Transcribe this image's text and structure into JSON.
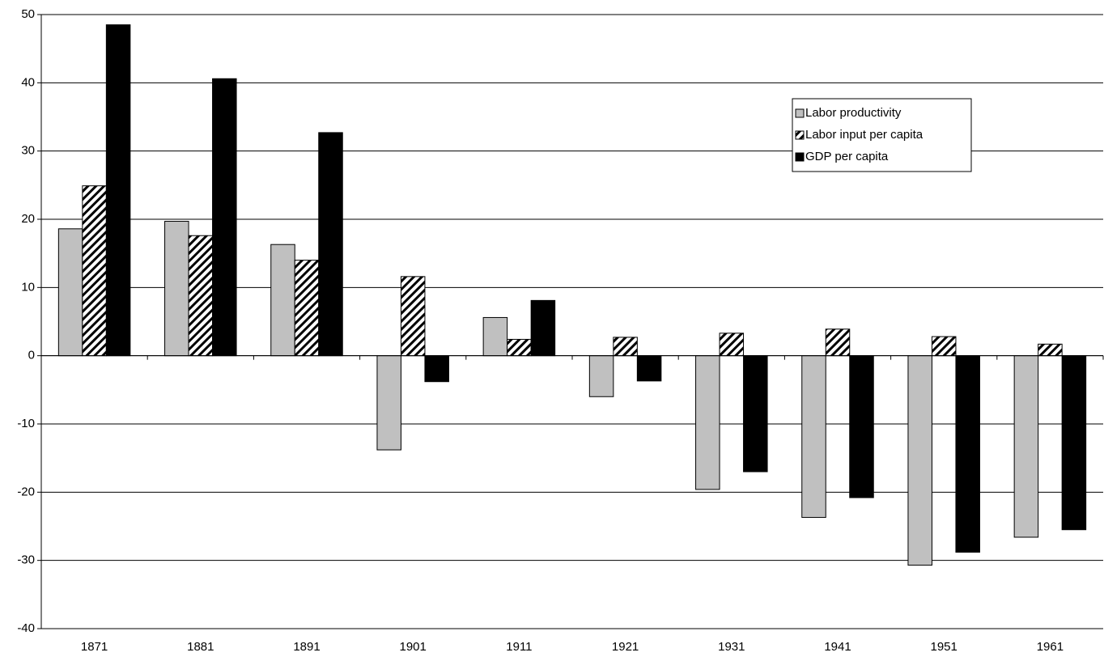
{
  "chart_data": {
    "type": "bar",
    "categories": [
      "1871",
      "1881",
      "1891",
      "1901",
      "1911",
      "1921",
      "1931",
      "1941",
      "1951",
      "1961"
    ],
    "series": [
      {
        "name": "Labor productivity",
        "color": "#c0c0c0",
        "values": [
          18.6,
          19.7,
          16.3,
          -13.8,
          5.6,
          -6.0,
          -19.6,
          -23.7,
          -30.7,
          -26.6
        ]
      },
      {
        "name": "Labor input per capita",
        "color": "#000000",
        "fill_pattern": "diagonal-hatch",
        "values": [
          24.9,
          17.6,
          14.0,
          11.6,
          2.4,
          2.7,
          3.3,
          3.9,
          2.8,
          1.7
        ]
      },
      {
        "name": "GDP per capita",
        "color": "#000000",
        "values": [
          48.5,
          40.6,
          32.7,
          -3.8,
          8.1,
          -3.7,
          -17.0,
          -20.8,
          -28.8,
          -25.5
        ]
      }
    ],
    "ylim": [
      -40,
      50
    ],
    "yticks": [
      -40,
      -30,
      -20,
      -10,
      0,
      10,
      20,
      30,
      40,
      50
    ],
    "grid": true,
    "legend": "upper right"
  }
}
